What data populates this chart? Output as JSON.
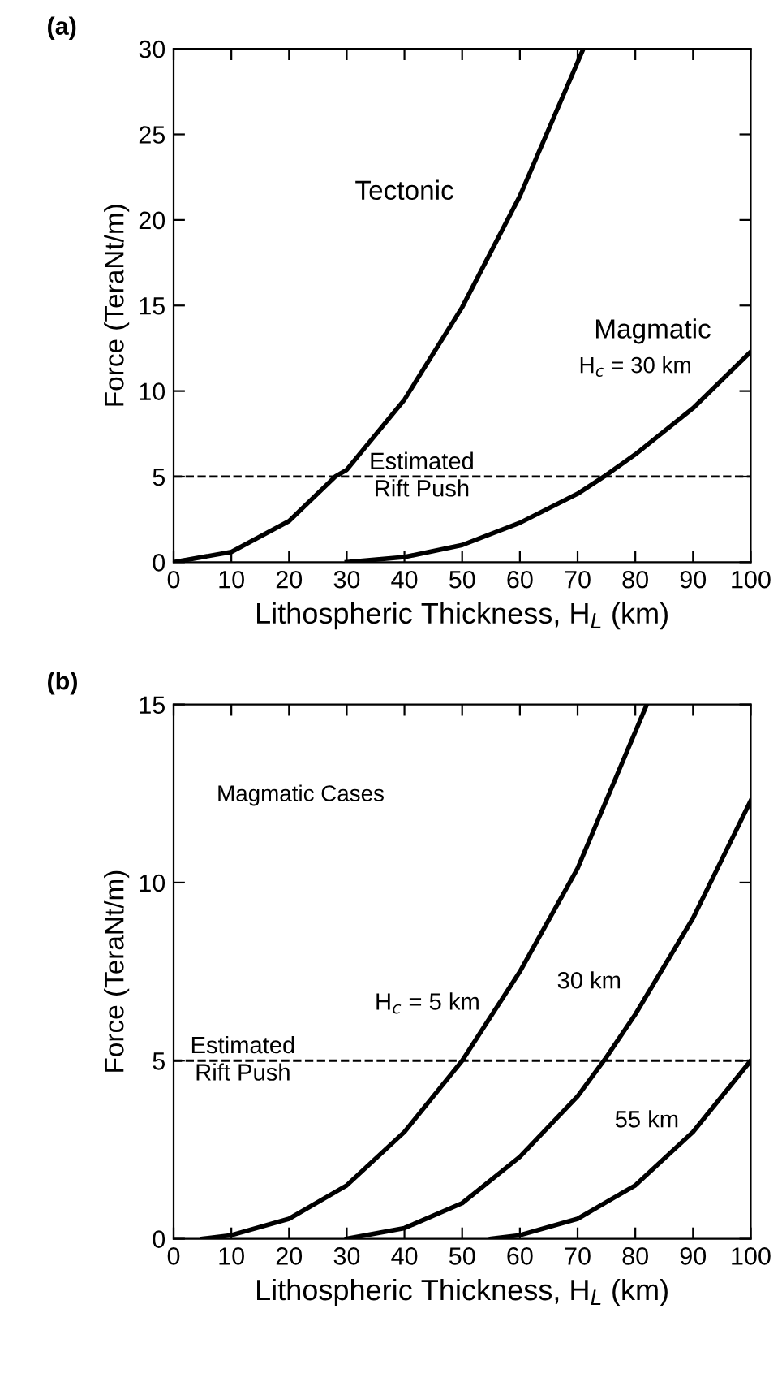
{
  "chart_data": [
    {
      "type": "line",
      "title": "(a)",
      "xlabel": "Lithospheric Thickness, H$_{L}$ (km)",
      "ylabel": "Force (TeraNt/m)",
      "xlim": [
        0,
        100
      ],
      "ylim": [
        0,
        30
      ],
      "xticks": [
        0,
        10,
        20,
        30,
        40,
        50,
        60,
        70,
        80,
        90,
        100
      ],
      "yticks": [
        0,
        5,
        10,
        15,
        20,
        25,
        30
      ],
      "series": [
        {
          "name": "Tectonic",
          "color": "#000000",
          "x": [
            0,
            10,
            20,
            28,
            30,
            40,
            50,
            60,
            71
          ],
          "values": [
            0,
            0.6,
            2.4,
            5,
            5.4,
            9.5,
            14.9,
            21.4,
            30
          ]
        },
        {
          "name": "Magmatic",
          "color": "#000000",
          "x": [
            30,
            40,
            50,
            60,
            70,
            75,
            80,
            90,
            100
          ],
          "values": [
            0,
            0.3,
            1.0,
            2.3,
            4.0,
            5.1,
            6.3,
            9.0,
            12.3
          ]
        }
      ],
      "annotations": [
        "H$_{c}$ = 30 km"
      ],
      "ref_lines": [
        {
          "axis": "y",
          "value": 5,
          "label": "Estimated\nRift Push",
          "line_style": "dashed",
          "color": "#000000"
        }
      ],
      "grid": false,
      "legend": false,
      "line_style": "solid",
      "marker": "none"
    },
    {
      "type": "line",
      "title": "(b)",
      "xlabel": "Lithospheric Thickness, H$_{L}$ (km)",
      "ylabel": "Force (TeraNt/m)",
      "xlim": [
        0,
        100
      ],
      "ylim": [
        0,
        15
      ],
      "xticks": [
        0,
        10,
        20,
        30,
        40,
        50,
        60,
        70,
        80,
        90,
        100
      ],
      "yticks": [
        0,
        5,
        10,
        15
      ],
      "series": [
        {
          "name": "H$_{c}$ = 5 km",
          "color": "#000000",
          "x": [
            5,
            10,
            20,
            30,
            40,
            50,
            60,
            70,
            82
          ],
          "values": [
            0,
            0.1,
            0.56,
            1.5,
            3.0,
            5.0,
            7.5,
            10.4,
            15
          ]
        },
        {
          "name": "30 km",
          "color": "#000000",
          "x": [
            30,
            40,
            50,
            60,
            70,
            75,
            80,
            90,
            100
          ],
          "values": [
            0,
            0.3,
            1.0,
            2.3,
            4.0,
            5.1,
            6.3,
            9.0,
            12.3
          ]
        },
        {
          "name": "55 km",
          "color": "#000000",
          "x": [
            55,
            60,
            70,
            80,
            90,
            100
          ],
          "values": [
            0,
            0.1,
            0.56,
            1.5,
            3.0,
            5.0
          ]
        }
      ],
      "annotations": [
        "Magmatic Cases"
      ],
      "ref_lines": [
        {
          "axis": "y",
          "value": 5,
          "label": "Estimated\nRift Push",
          "line_style": "dashed",
          "color": "#000000"
        }
      ],
      "grid": false,
      "legend": false,
      "line_style": "solid",
      "marker": "none"
    }
  ]
}
